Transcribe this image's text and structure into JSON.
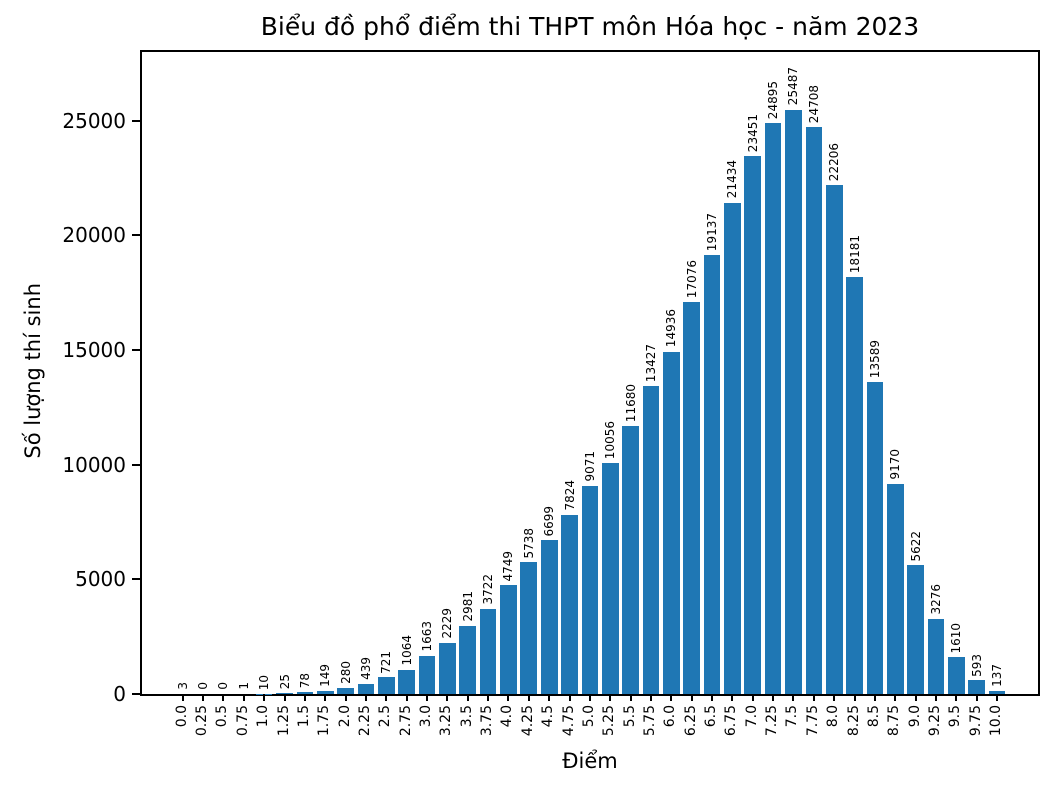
{
  "chart_data": {
    "type": "bar",
    "title": "Biểu đồ phổ điểm thi THPT môn Hóa học - năm 2023",
    "xlabel": "Điểm",
    "ylabel": "Số lượng thí sinh",
    "categories": [
      "0.0",
      "0.25",
      "0.5",
      "0.75",
      "1.0",
      "1.25",
      "1.5",
      "1.75",
      "2.0",
      "2.25",
      "2.5",
      "2.75",
      "3.0",
      "3.25",
      "3.5",
      "3.75",
      "4.0",
      "4.25",
      "4.5",
      "4.75",
      "5.0",
      "5.25",
      "5.5",
      "5.75",
      "6.0",
      "6.25",
      "6.5",
      "6.75",
      "7.0",
      "7.25",
      "7.5",
      "7.75",
      "8.0",
      "8.25",
      "8.5",
      "8.75",
      "9.0",
      "9.25",
      "9.5",
      "9.75",
      "10.0"
    ],
    "values": [
      3,
      0,
      0,
      1,
      10,
      25,
      78,
      149,
      280,
      439,
      721,
      1064,
      1663,
      2229,
      2981,
      3722,
      4749,
      5738,
      6699,
      7824,
      9071,
      10056,
      11680,
      13427,
      14936,
      17076,
      19137,
      21434,
      23451,
      24895,
      25487,
      24708,
      22206,
      18181,
      13589,
      9170,
      5622,
      3276,
      1610,
      593,
      137
    ],
    "yticks": [
      0,
      5000,
      10000,
      15000,
      20000,
      25000
    ],
    "ylim": [
      0,
      28000
    ],
    "bar_color": "#1f77b4",
    "axis_color": "#000000",
    "grid": false,
    "legend": null,
    "bar_label_rotation": 90,
    "xtick_rotation": 90
  }
}
